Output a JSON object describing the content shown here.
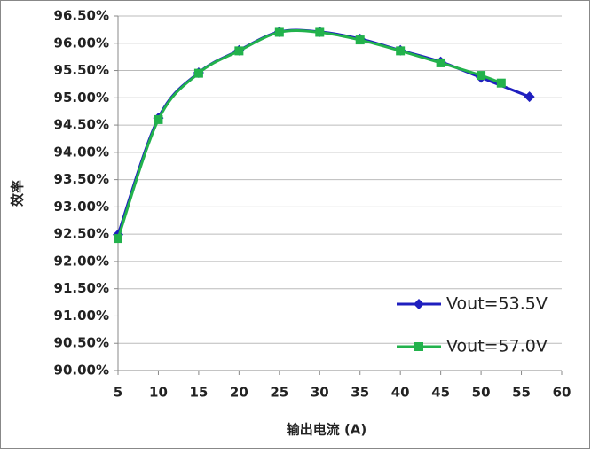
{
  "chart_data": {
    "type": "line",
    "y_label": "效率",
    "x_label": "输出电流 (A)",
    "xlim": [
      5,
      60
    ],
    "xticks": [
      5,
      10,
      15,
      20,
      25,
      30,
      35,
      40,
      45,
      50,
      55,
      60
    ],
    "ylim": [
      90,
      96.5
    ],
    "yticks": [
      {
        "value": 90,
        "label": "90.00%"
      },
      {
        "value": 90.5,
        "label": "90.50%"
      },
      {
        "value": 91,
        "label": "91.00%"
      },
      {
        "value": 91.5,
        "label": "91.50%"
      },
      {
        "value": 92,
        "label": "92.00%"
      },
      {
        "value": 92.5,
        "label": "92.50%"
      },
      {
        "value": 93,
        "label": "93.00%"
      },
      {
        "value": 93.5,
        "label": "93.50%"
      },
      {
        "value": 94,
        "label": "94.00%"
      },
      {
        "value": 94.5,
        "label": "94.50%"
      },
      {
        "value": 95,
        "label": "95.00%"
      },
      {
        "value": 95.5,
        "label": "95.50%"
      },
      {
        "value": 96,
        "label": "96.00%"
      },
      {
        "value": 96.5,
        "label": "96.50%"
      }
    ],
    "grid": true,
    "legend": "lower right",
    "series": [
      {
        "name": "Vout=53.5V",
        "color": "#1f1fbf",
        "marker": "diamond",
        "x": [
          5,
          10,
          15,
          20,
          25,
          30,
          35,
          40,
          45,
          50,
          56
        ],
        "values": [
          92.49,
          94.63,
          95.46,
          95.87,
          96.21,
          96.21,
          96.08,
          95.87,
          95.66,
          95.37,
          95.02
        ]
      },
      {
        "name": "Vout=57.0V",
        "color": "#22b24c",
        "marker": "square",
        "x": [
          5,
          10,
          15,
          20,
          25,
          30,
          35,
          40,
          45,
          50,
          52.5
        ],
        "values": [
          92.42,
          94.6,
          95.45,
          95.86,
          96.2,
          96.2,
          96.06,
          95.86,
          95.64,
          95.41,
          95.27
        ]
      }
    ]
  }
}
